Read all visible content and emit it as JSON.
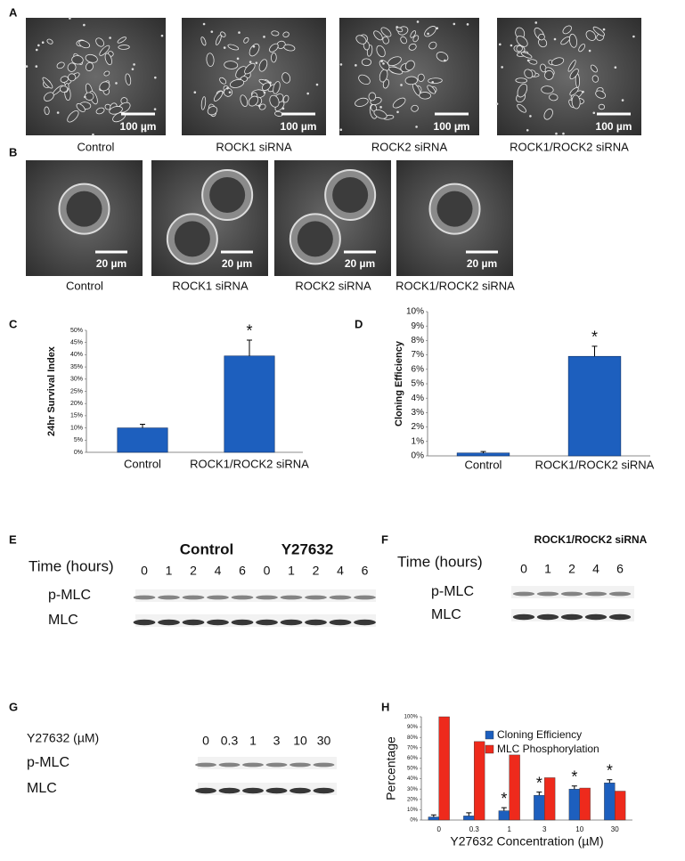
{
  "panel_a": {
    "label": "A",
    "images": [
      {
        "caption": "Control",
        "scale_bar": "100 µm"
      },
      {
        "caption": "ROCK1 siRNA",
        "scale_bar": "100 µm"
      },
      {
        "caption": "ROCK2 siRNA",
        "scale_bar": "100 µm"
      },
      {
        "caption": "ROCK1/ROCK2 siRNA",
        "scale_bar": "100 µm"
      }
    ]
  },
  "panel_b": {
    "label": "B",
    "images": [
      {
        "caption": "Control",
        "scale_bar": "20 µm"
      },
      {
        "caption": "ROCK1 siRNA",
        "scale_bar": "20 µm"
      },
      {
        "caption": "ROCK2 siRNA",
        "scale_bar": "20 µm"
      },
      {
        "caption": "ROCK1/ROCK2 siRNA",
        "scale_bar": "20 µm"
      }
    ]
  },
  "panel_e": {
    "label": "E",
    "groups": [
      "Control",
      "Y27632"
    ],
    "time_label": "Time (hours)",
    "lanes": [
      "0",
      "1",
      "2",
      "4",
      "6",
      "0",
      "1",
      "2",
      "4",
      "6"
    ],
    "rows": [
      "p-MLC",
      "MLC"
    ]
  },
  "panel_f": {
    "label": "F",
    "title": "ROCK1/ROCK2 siRNA",
    "time_label": "Time (hours)",
    "lanes": [
      "0",
      "1",
      "2",
      "4",
      "6"
    ],
    "rows": [
      "p-MLC",
      "MLC"
    ]
  },
  "panel_g": {
    "label": "G",
    "dose_label": "Y27632 (µM)",
    "lanes": [
      "0",
      "0.3",
      "1",
      "3",
      "10",
      "30"
    ],
    "rows": [
      "p-MLC",
      "MLC"
    ]
  },
  "chart_data": [
    {
      "type": "bar",
      "label": "C",
      "ylabel": "24hr Survival Index",
      "categories": [
        "Control",
        "ROCK1/ROCK2 siRNA"
      ],
      "values": [
        10,
        39.5
      ],
      "errors": [
        1.5,
        6.5
      ],
      "color": "#1d5fbe",
      "ylim": [
        0,
        50
      ],
      "yticks": [
        {
          "value": 0,
          "label": "0%"
        },
        {
          "value": 5,
          "label": "5%"
        },
        {
          "value": 10,
          "label": "10%"
        },
        {
          "value": 15,
          "label": "15%"
        },
        {
          "value": 20,
          "label": "20%"
        },
        {
          "value": 25,
          "label": "25%"
        },
        {
          "value": 30,
          "label": "30%"
        },
        {
          "value": 35,
          "label": "35%"
        },
        {
          "value": 40,
          "label": "40%"
        },
        {
          "value": 45,
          "label": "45%"
        },
        {
          "value": 50,
          "label": "50%"
        }
      ],
      "annotations": [
        {
          "label": "*",
          "category": "ROCK1/ROCK2 siRNA"
        }
      ]
    },
    {
      "type": "bar",
      "label": "D",
      "ylabel": "Cloning Efficiency",
      "categories": [
        "Control",
        "ROCK1/ROCK2 siRNA"
      ],
      "values": [
        0.2,
        6.9
      ],
      "errors": [
        0.1,
        0.7
      ],
      "color": "#1d5fbe",
      "ylim": [
        0,
        10
      ],
      "yticks": [
        {
          "value": 0,
          "label": "0%"
        },
        {
          "value": 1,
          "label": "1%"
        },
        {
          "value": 2,
          "label": "2%"
        },
        {
          "value": 3,
          "label": "3%"
        },
        {
          "value": 4,
          "label": "4%"
        },
        {
          "value": 5,
          "label": "5%"
        },
        {
          "value": 6,
          "label": "6%"
        },
        {
          "value": 7,
          "label": "7%"
        },
        {
          "value": 8,
          "label": "8%"
        },
        {
          "value": 9,
          "label": "9%"
        },
        {
          "value": 10,
          "label": "10%"
        }
      ],
      "annotations": [
        {
          "label": "*",
          "category": "ROCK1/ROCK2 siRNA"
        }
      ]
    },
    {
      "type": "grouped_bar",
      "label": "H",
      "ylabel": "Percentage",
      "xlabel": "Y27632 Concentration (µM)",
      "categories": [
        "0",
        "0.3",
        "1",
        "3",
        "10",
        "30"
      ],
      "series": [
        {
          "name": "Cloning Efficiency",
          "color": "#1d5fbe",
          "values": [
            3,
            4,
            9,
            24,
            30,
            36
          ],
          "errors": [
            2,
            3,
            3,
            3,
            3,
            3
          ]
        },
        {
          "name": "MLC Phosphorylation",
          "color": "#ee2a1c",
          "values": [
            100,
            76,
            63,
            41,
            31,
            28
          ]
        }
      ],
      "ylim": [
        0,
        100
      ],
      "yticks": [
        {
          "value": 0,
          "label": "0%"
        },
        {
          "value": 10,
          "label": "10%"
        },
        {
          "value": 20,
          "label": "20%"
        },
        {
          "value": 30,
          "label": "30%"
        },
        {
          "value": 40,
          "label": "40%"
        },
        {
          "value": 50,
          "label": "50%"
        },
        {
          "value": 60,
          "label": "60%"
        },
        {
          "value": 70,
          "label": "70%"
        },
        {
          "value": 80,
          "label": "80%"
        },
        {
          "value": 90,
          "label": "90%"
        },
        {
          "value": 100,
          "label": "100%"
        }
      ],
      "annotations": [
        {
          "label": "*",
          "category": "1"
        },
        {
          "label": "*",
          "category": "3"
        },
        {
          "label": "*",
          "category": "10"
        },
        {
          "label": "*",
          "category": "30"
        }
      ]
    }
  ]
}
